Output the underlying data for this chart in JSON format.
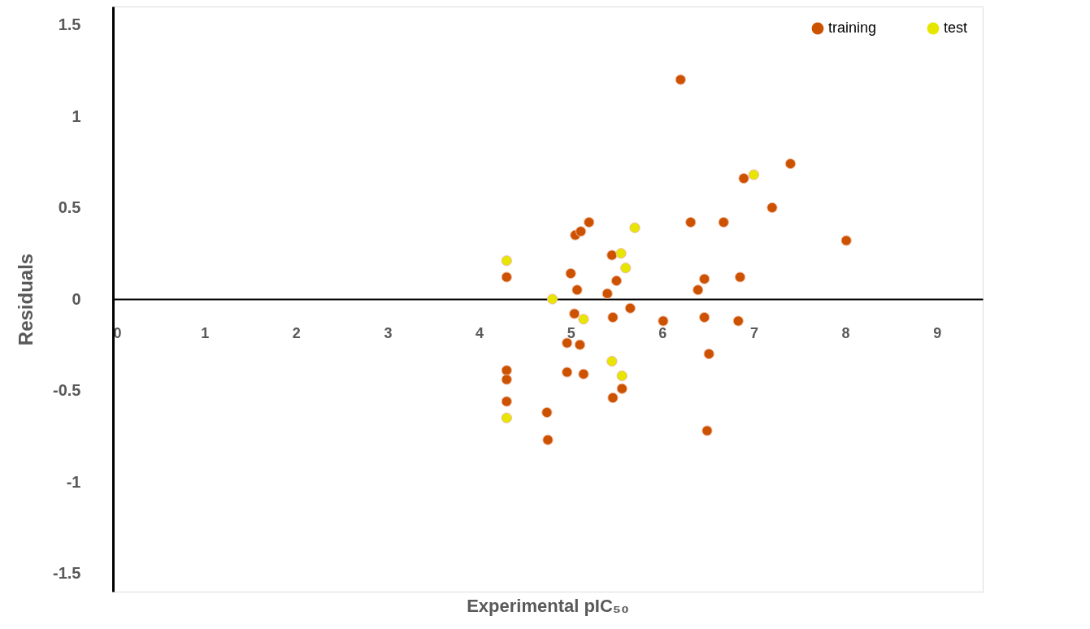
{
  "chart_data": {
    "type": "scatter",
    "xlabel": "Experimental pIC₅₀",
    "ylabel": "Residuals",
    "xlim": [
      0,
      9.5
    ],
    "ylim": [
      -1.6,
      1.6
    ],
    "xticks": [
      0,
      1,
      2,
      3,
      4,
      5,
      6,
      7,
      8,
      9
    ],
    "yticks": [
      -1.5,
      -1,
      -0.5,
      0,
      0.5,
      1,
      1.5
    ],
    "grid": false,
    "legend": "top right",
    "marker": "circle",
    "series": [
      {
        "name": "training",
        "color": "#cc5200",
        "x": [
          4.3,
          4.3,
          4.3,
          4.3,
          4.74,
          4.75,
          4.96,
          4.96,
          5.0,
          5.04,
          5.07,
          5.05,
          5.11,
          5.1,
          5.14,
          5.2,
          5.45,
          5.4,
          5.46,
          5.46,
          5.5,
          5.56,
          5.65,
          6.01,
          6.2,
          6.31,
          6.39,
          6.46,
          6.46,
          6.51,
          6.49,
          6.67,
          6.85,
          6.83,
          6.89,
          7.2,
          7.4,
          8.01
        ],
        "values": [
          0.12,
          -0.39,
          -0.44,
          -0.56,
          -0.62,
          -0.77,
          -0.24,
          -0.4,
          0.14,
          -0.08,
          0.05,
          0.35,
          0.37,
          -0.25,
          -0.41,
          0.42,
          0.24,
          0.03,
          -0.1,
          -0.54,
          0.1,
          -0.49,
          -0.05,
          -0.12,
          1.2,
          0.42,
          0.05,
          0.11,
          -0.1,
          -0.3,
          -0.72,
          0.42,
          0.12,
          -0.12,
          0.66,
          0.5,
          0.74,
          0.32
        ]
      },
      {
        "name": "test",
        "color": "#e6e600",
        "x": [
          4.3,
          4.3,
          4.8,
          5.14,
          5.45,
          5.55,
          5.6,
          5.7,
          5.56,
          7.0
        ],
        "values": [
          0.21,
          -0.65,
          0.0,
          -0.11,
          -0.34,
          0.25,
          0.17,
          0.39,
          -0.42,
          0.68
        ]
      }
    ]
  }
}
